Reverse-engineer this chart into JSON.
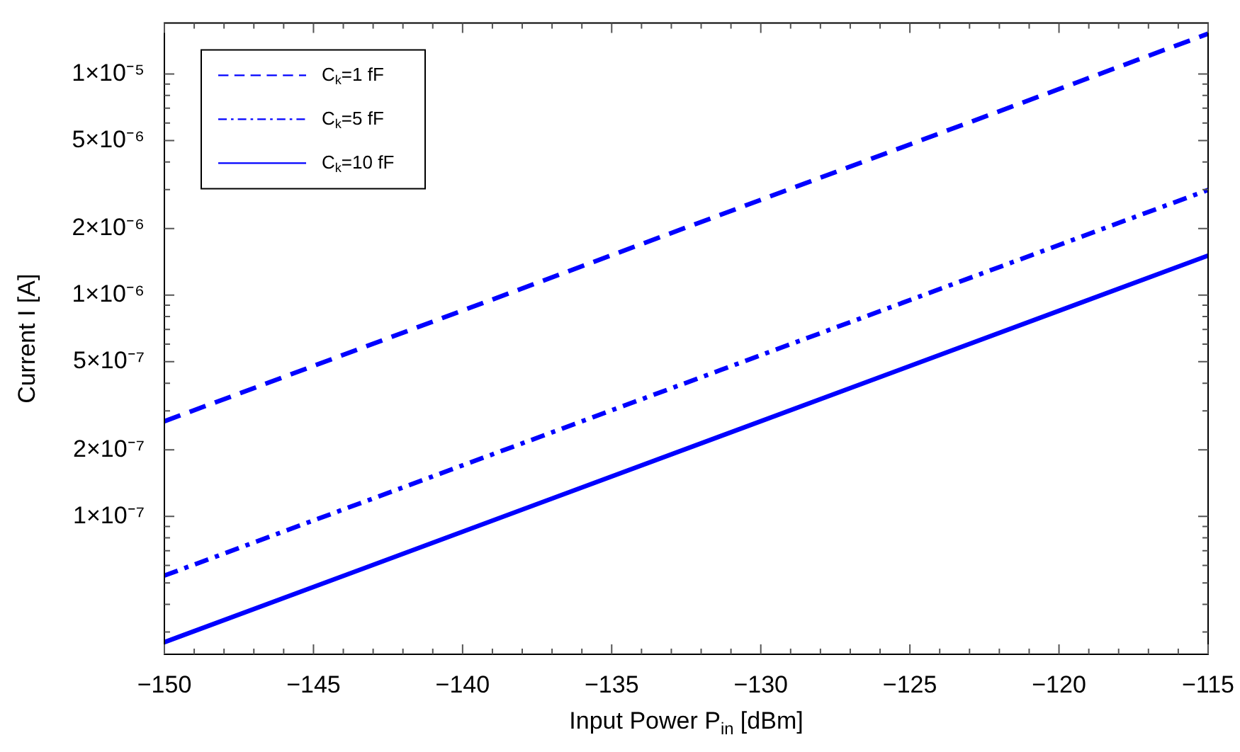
{
  "chart_data": {
    "type": "line",
    "xlabel": "Input Power P$_{in}$ [dBm]",
    "ylabel": "Current I [A]",
    "log": "y",
    "legend": "top left",
    "x": [
      -150,
      -115
    ],
    "xlim": [
      -150,
      -115
    ],
    "xticks": [
      {
        "value": -150,
        "label": "−150"
      },
      {
        "value": -149,
        "label": null
      },
      {
        "value": -148,
        "label": null
      },
      {
        "value": -147,
        "label": null
      },
      {
        "value": -146,
        "label": null
      },
      {
        "value": -145,
        "label": "−145"
      },
      {
        "value": -144,
        "label": null
      },
      {
        "value": -143,
        "label": null
      },
      {
        "value": -142,
        "label": null
      },
      {
        "value": -141,
        "label": null
      },
      {
        "value": -140,
        "label": "−140"
      },
      {
        "value": -139,
        "label": null
      },
      {
        "value": -138,
        "label": null
      },
      {
        "value": -137,
        "label": null
      },
      {
        "value": -136,
        "label": null
      },
      {
        "value": -135,
        "label": "−135"
      },
      {
        "value": -134,
        "label": null
      },
      {
        "value": -133,
        "label": null
      },
      {
        "value": -132,
        "label": null
      },
      {
        "value": -131,
        "label": null
      },
      {
        "value": -130,
        "label": "−130"
      },
      {
        "value": -129,
        "label": null
      },
      {
        "value": -128,
        "label": null
      },
      {
        "value": -127,
        "label": null
      },
      {
        "value": -126,
        "label": null
      },
      {
        "value": -125,
        "label": "−125"
      },
      {
        "value": -124,
        "label": null
      },
      {
        "value": -123,
        "label": null
      },
      {
        "value": -122,
        "label": null
      },
      {
        "value": -121,
        "label": null
      },
      {
        "value": -120,
        "label": "−120"
      },
      {
        "value": -119,
        "label": null
      },
      {
        "value": -118,
        "label": null
      },
      {
        "value": -117,
        "label": null
      },
      {
        "value": -116,
        "label": null
      },
      {
        "value": -115,
        "label": "−115"
      }
    ],
    "ylim": [
      2.38e-08,
      1.7e-05
    ],
    "yticks": [
      {
        "value": 3e-08,
        "label": null
      },
      {
        "value": 4e-08,
        "label": null
      },
      {
        "value": 5e-08,
        "label": null
      },
      {
        "value": 6e-08,
        "label": null
      },
      {
        "value": 7e-08,
        "label": null
      },
      {
        "value": 8e-08,
        "label": null
      },
      {
        "value": 9e-08,
        "label": null
      },
      {
        "value": 1e-07,
        "label": "1×10⁻⁷"
      },
      {
        "value": 2e-07,
        "label": "2×10⁻⁷"
      },
      {
        "value": 3e-07,
        "label": null
      },
      {
        "value": 4e-07,
        "label": null
      },
      {
        "value": 5e-07,
        "label": "5×10⁻⁷"
      },
      {
        "value": 6e-07,
        "label": null
      },
      {
        "value": 7e-07,
        "label": null
      },
      {
        "value": 8e-07,
        "label": null
      },
      {
        "value": 9e-07,
        "label": null
      },
      {
        "value": 1e-06,
        "label": "1×10⁻⁶"
      },
      {
        "value": 2e-06,
        "label": "2×10⁻⁶"
      },
      {
        "value": 3e-06,
        "label": null
      },
      {
        "value": 4e-06,
        "label": null
      },
      {
        "value": 5e-06,
        "label": "5×10⁻⁶"
      },
      {
        "value": 6e-06,
        "label": null
      },
      {
        "value": 7e-06,
        "label": null
      },
      {
        "value": 8e-06,
        "label": null
      },
      {
        "value": 9e-06,
        "label": null
      },
      {
        "value": 1e-05,
        "label": "1×10⁻⁵"
      }
    ],
    "series": [
      {
        "name": "C$_{k}$=1 fF",
        "color": "#0000ff",
        "line_style": "dashed",
        "values": [
          2.69e-07,
          1.52e-05
        ]
      },
      {
        "name": "C$_{k}$=5 fF",
        "color": "#0000ff",
        "line_style": "dashdot",
        "values": [
          5.4e-08,
          2.99e-06
        ]
      },
      {
        "name": "C$_{k}$=10 fF",
        "color": "#0000ff",
        "line_style": "solid",
        "values": [
          2.7e-08,
          1.51e-06
        ]
      }
    ]
  }
}
